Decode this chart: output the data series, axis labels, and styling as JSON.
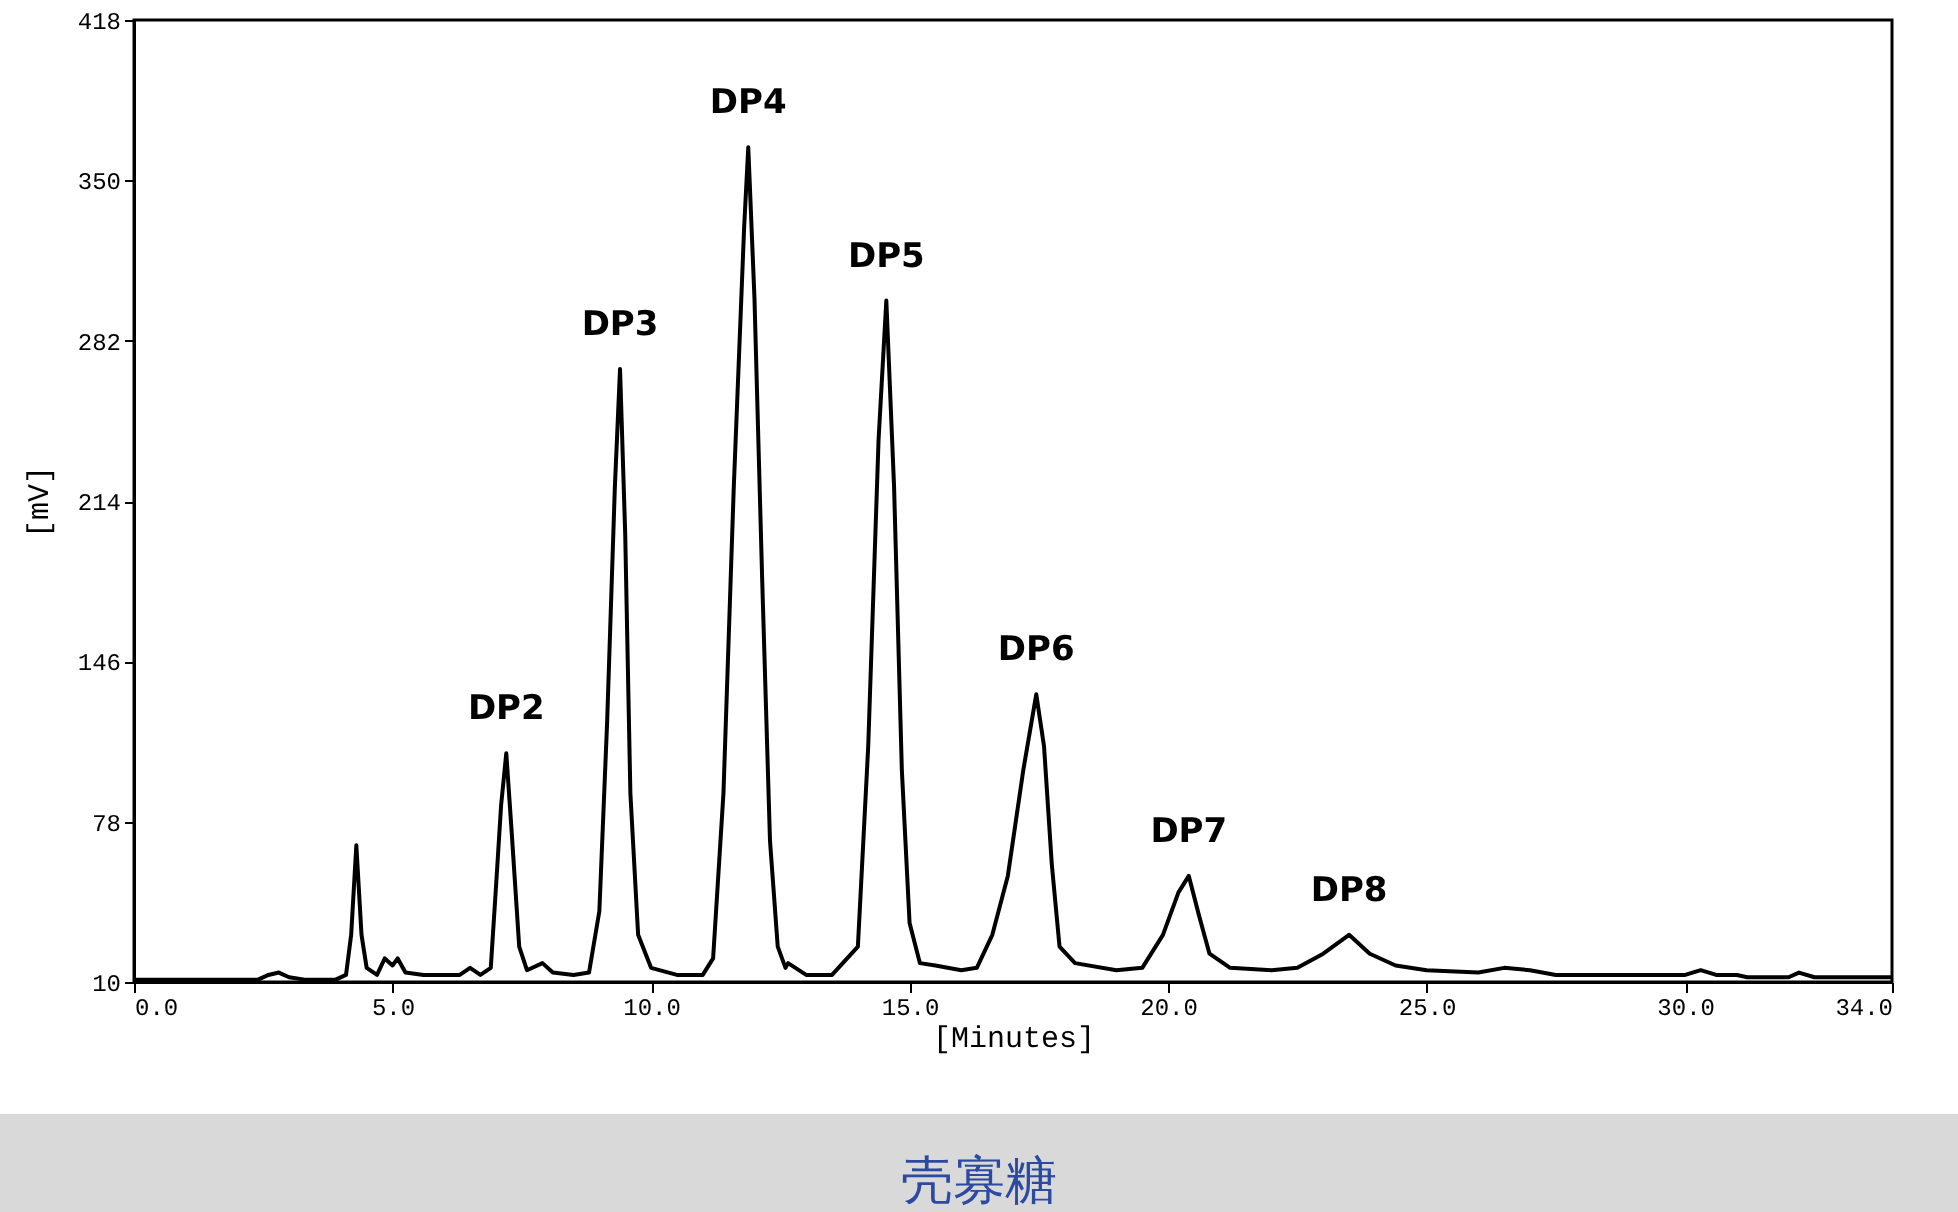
{
  "chart_data": {
    "type": "line",
    "xlabel": "[Minutes]",
    "ylabel": "[mV]",
    "x": [
      0,
      2.4,
      2.6,
      2.8,
      3.0,
      3.3,
      3.9,
      4.1,
      4.2,
      4.3,
      4.4,
      4.5,
      4.7,
      4.85,
      5.0,
      5.1,
      5.25,
      5.6,
      6.3,
      6.5,
      6.7,
      6.9,
      7.0,
      7.1,
      7.2,
      7.3,
      7.45,
      7.6,
      7.9,
      8.1,
      8.5,
      8.8,
      9.0,
      9.15,
      9.3,
      9.4,
      9.5,
      9.6,
      9.75,
      10.0,
      10.5,
      11.0,
      11.2,
      11.4,
      11.6,
      11.8,
      11.88,
      12.0,
      12.15,
      12.3,
      12.45,
      12.6,
      12.65,
      13.0,
      13.5,
      14.0,
      14.2,
      14.4,
      14.55,
      14.7,
      14.85,
      15.0,
      15.2,
      15.5,
      16.0,
      16.3,
      16.6,
      16.9,
      17.2,
      17.45,
      17.6,
      17.75,
      17.9,
      18.2,
      19.0,
      19.5,
      19.9,
      20.2,
      20.4,
      20.6,
      20.8,
      21.2,
      22.0,
      22.5,
      23.0,
      23.5,
      23.9,
      24.4,
      25.0,
      26.0,
      26.5,
      27.0,
      27.5,
      30.0,
      30.3,
      30.6,
      31.0,
      31.2,
      32.0,
      32.2,
      32.5,
      34.0
    ],
    "series": [
      {
        "color": "#000000",
        "values": [
          11,
          11,
          13,
          14,
          12,
          11,
          11,
          13,
          30,
          68,
          30,
          16,
          13,
          20,
          17,
          20,
          14,
          13,
          13,
          16,
          13,
          16,
          50,
          85,
          107,
          75,
          25,
          15,
          18,
          14,
          13,
          14,
          40,
          120,
          220,
          270,
          200,
          90,
          30,
          16,
          13,
          13,
          20,
          90,
          220,
          330,
          364,
          300,
          180,
          70,
          25,
          16,
          18,
          13,
          13,
          25,
          110,
          240,
          299,
          220,
          100,
          35,
          18,
          17,
          15,
          16,
          30,
          55,
          100,
          132,
          110,
          60,
          25,
          18,
          15,
          16,
          30,
          48,
          55,
          38,
          22,
          16,
          15,
          16,
          22,
          30,
          22,
          17,
          15,
          14,
          16,
          15,
          13,
          13,
          15,
          13,
          13,
          12,
          12,
          14,
          12,
          12
        ]
      }
    ],
    "xlim": [
      0,
      34
    ],
    "ylim": [
      10,
      418
    ],
    "xticks": [
      {
        "value": 0,
        "label": "0.0"
      },
      {
        "value": 5,
        "label": "5.0"
      },
      {
        "value": 10,
        "label": "10.0"
      },
      {
        "value": 15,
        "label": "15.0"
      },
      {
        "value": 20,
        "label": "20.0"
      },
      {
        "value": 25,
        "label": "25.0"
      },
      {
        "value": 30,
        "label": "30.0"
      },
      {
        "value": 34,
        "label": "34.0"
      }
    ],
    "yticks": [
      10,
      78,
      146,
      214,
      282,
      350,
      418
    ],
    "grid": false,
    "marker": "none",
    "line_style": "solid",
    "annotations": [
      {
        "text": "DP2",
        "x": 7.2,
        "y": 107
      },
      {
        "text": "DP3",
        "x": 9.4,
        "y": 270
      },
      {
        "text": "DP4",
        "x": 11.88,
        "y": 364
      },
      {
        "text": "DP5",
        "x": 14.55,
        "y": 299
      },
      {
        "text": "DP6",
        "x": 17.45,
        "y": 132
      },
      {
        "text": "DP7",
        "x": 20.4,
        "y": 55
      },
      {
        "text": "DP8",
        "x": 23.5,
        "y": 30
      },
      "壳寡糖"
    ]
  }
}
